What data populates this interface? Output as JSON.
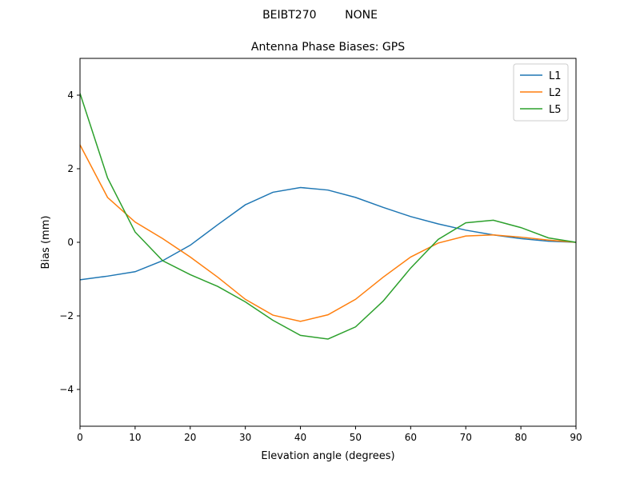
{
  "chart_data": {
    "type": "line",
    "suptitle": "BEIBT270        NONE",
    "title": "Antenna Phase Biases: GPS",
    "xlabel": "Elevation angle (degrees)",
    "ylabel": "Bias (mm)",
    "x": [
      0,
      5,
      10,
      15,
      20,
      25,
      30,
      35,
      40,
      45,
      50,
      55,
      60,
      65,
      70,
      75,
      80,
      85,
      90
    ],
    "series": [
      {
        "name": "L1",
        "color": "#1f77b4",
        "values": [
          -1.02,
          -0.92,
          -0.8,
          -0.5,
          -0.08,
          0.48,
          1.02,
          1.36,
          1.49,
          1.42,
          1.22,
          0.95,
          0.7,
          0.5,
          0.33,
          0.2,
          0.1,
          0.03,
          0
        ]
      },
      {
        "name": "L2",
        "color": "#ff7f0e",
        "values": [
          2.65,
          1.22,
          0.55,
          0.1,
          -0.4,
          -0.95,
          -1.55,
          -1.98,
          -2.15,
          -1.97,
          -1.55,
          -0.95,
          -0.4,
          -0.02,
          0.17,
          0.2,
          0.14,
          0.06,
          0
        ]
      },
      {
        "name": "L5",
        "color": "#2ca02c",
        "values": [
          4.05,
          1.75,
          0.28,
          -0.5,
          -0.88,
          -1.2,
          -1.62,
          -2.12,
          -2.53,
          -2.63,
          -2.3,
          -1.6,
          -0.7,
          0.08,
          0.53,
          0.6,
          0.4,
          0.12,
          0
        ]
      }
    ],
    "xlim": [
      0,
      90
    ],
    "xticks": [
      0,
      10,
      20,
      30,
      40,
      50,
      60,
      70,
      80,
      90
    ],
    "ylim": [
      -5,
      5
    ],
    "yticks": [
      {
        "value": -4,
        "label": "−4"
      },
      {
        "value": -2,
        "label": "−2"
      },
      0,
      2,
      4
    ],
    "legend": "upper right",
    "grid": false
  }
}
